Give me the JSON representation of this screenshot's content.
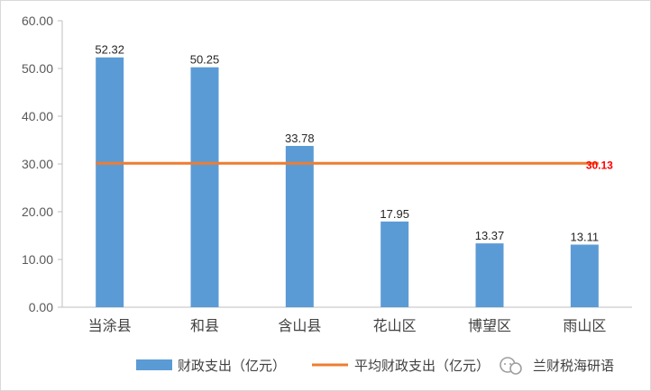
{
  "chart_data": {
    "type": "bar",
    "categories": [
      "当涂县",
      "和县",
      "含山县",
      "花山区",
      "博望区",
      "雨山区"
    ],
    "series": [
      {
        "name": "财政支出（亿元）",
        "type": "bar",
        "values": [
          52.32,
          50.25,
          33.78,
          17.95,
          13.37,
          13.11
        ],
        "labels": [
          "52.32",
          "50.25",
          "33.78",
          "17.95",
          "13.37",
          "13.11"
        ]
      },
      {
        "name": "平均财政支出（亿元）",
        "type": "line",
        "value": 30.13,
        "label": "30.13"
      }
    ],
    "ylim": [
      0,
      60
    ],
    "yticks": [
      "0.00",
      "10.00",
      "20.00",
      "30.00",
      "40.00",
      "50.00",
      "60.00"
    ],
    "ytick_values": [
      0,
      10,
      20,
      30,
      40,
      50,
      60
    ],
    "grid": false,
    "legend": "bottom",
    "colors": {
      "bar": "#5b9bd5",
      "line": "#ed7d31",
      "avg_label": "#ff0000"
    }
  },
  "watermark": {
    "text": "兰财税海研语",
    "icon": "wechat-icon"
  }
}
